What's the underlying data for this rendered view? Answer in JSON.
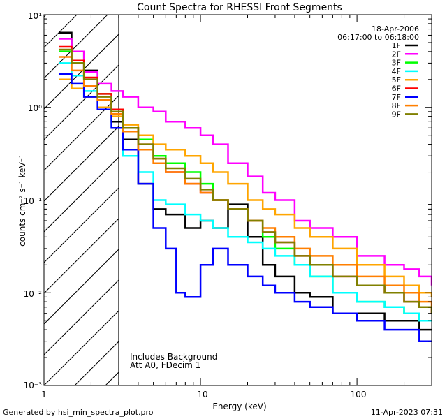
{
  "chart_data": {
    "type": "line",
    "title": "Count Spectra for RHESSI Front Segments",
    "xlabel": "Energy (keV)",
    "ylabel": "counts cm⁻² s⁻¹ keV⁻¹",
    "xscale": "log",
    "yscale": "log",
    "xlim": [
      1,
      300
    ],
    "ylim": [
      0.001,
      10
    ],
    "x_tick_labels": [
      "1",
      "10",
      "100"
    ],
    "y_tick_labels": [
      "10⁻³",
      "10⁻²",
      "10⁻¹",
      "10⁰",
      "10¹"
    ],
    "date": "18-Apr-2006",
    "time_range": "06:17:00 to 06:18:00",
    "annotations": [
      "Includes Background",
      "Att A0, FDecim 1"
    ],
    "shaded_region": {
      "x": [
        1,
        3
      ],
      "pattern": "diagonal hatch"
    },
    "footer_left": "Generated by hsi_min_spectra_plot.pro",
    "footer_right": "11-Apr-2023 07:31",
    "legend_position": "top-right",
    "series": [
      {
        "name": "1F",
        "color": "#000000",
        "values": [
          [
            1.25,
            6.4
          ],
          [
            1.5,
            4.0
          ],
          [
            1.8,
            2.5
          ],
          [
            2.2,
            1.2
          ],
          [
            2.7,
            0.7
          ],
          [
            3.2,
            0.45
          ],
          [
            4,
            0.15
          ],
          [
            5,
            0.08
          ],
          [
            6,
            0.07
          ],
          [
            8,
            0.05
          ],
          [
            10,
            0.06
          ],
          [
            12,
            0.05
          ],
          [
            15,
            0.09
          ],
          [
            20,
            0.04
          ],
          [
            25,
            0.02
          ],
          [
            30,
            0.015
          ],
          [
            40,
            0.01
          ],
          [
            50,
            0.009
          ],
          [
            70,
            0.006
          ],
          [
            100,
            0.006
          ],
          [
            150,
            0.005
          ],
          [
            200,
            0.005
          ],
          [
            250,
            0.004
          ],
          [
            300,
            0.004
          ]
        ]
      },
      {
        "name": "2F",
        "color": "#ff00ff",
        "values": [
          [
            1.25,
            5.5
          ],
          [
            1.5,
            4.0
          ],
          [
            1.8,
            2.4
          ],
          [
            2.2,
            1.8
          ],
          [
            2.7,
            1.5
          ],
          [
            3.2,
            1.3
          ],
          [
            4,
            1.0
          ],
          [
            5,
            0.9
          ],
          [
            6,
            0.7
          ],
          [
            8,
            0.6
          ],
          [
            10,
            0.5
          ],
          [
            12,
            0.4
          ],
          [
            15,
            0.25
          ],
          [
            20,
            0.18
          ],
          [
            25,
            0.12
          ],
          [
            30,
            0.1
          ],
          [
            40,
            0.06
          ],
          [
            50,
            0.05
          ],
          [
            70,
            0.04
          ],
          [
            100,
            0.025
          ],
          [
            150,
            0.02
          ],
          [
            200,
            0.018
          ],
          [
            250,
            0.015
          ],
          [
            300,
            0.012
          ]
        ]
      },
      {
        "name": "3F",
        "color": "#00ff00",
        "values": [
          [
            1.25,
            4.0
          ],
          [
            1.5,
            3.0
          ],
          [
            1.8,
            2.0
          ],
          [
            2.2,
            1.4
          ],
          [
            2.7,
            0.9
          ],
          [
            3.2,
            0.6
          ],
          [
            4,
            0.45
          ],
          [
            5,
            0.3
          ],
          [
            6,
            0.25
          ],
          [
            8,
            0.2
          ],
          [
            10,
            0.15
          ],
          [
            12,
            0.1
          ],
          [
            15,
            0.08
          ],
          [
            20,
            0.06
          ],
          [
            25,
            0.04
          ],
          [
            30,
            0.03
          ],
          [
            40,
            0.02
          ],
          [
            50,
            0.015
          ],
          [
            70,
            0.01
          ],
          [
            100,
            0.008
          ],
          [
            150,
            0.007
          ],
          [
            200,
            0.006
          ],
          [
            250,
            0.005
          ],
          [
            300,
            0.005
          ]
        ]
      },
      {
        "name": "4F",
        "color": "#00ffff",
        "values": [
          [
            1.25,
            3.0
          ],
          [
            1.5,
            2.2
          ],
          [
            1.8,
            1.5
          ],
          [
            2.2,
            1.0
          ],
          [
            2.7,
            0.6
          ],
          [
            3.2,
            0.3
          ],
          [
            4,
            0.2
          ],
          [
            5,
            0.1
          ],
          [
            6,
            0.09
          ],
          [
            8,
            0.07
          ],
          [
            10,
            0.06
          ],
          [
            12,
            0.05
          ],
          [
            15,
            0.04
          ],
          [
            20,
            0.035
          ],
          [
            25,
            0.03
          ],
          [
            30,
            0.025
          ],
          [
            40,
            0.02
          ],
          [
            50,
            0.015
          ],
          [
            70,
            0.01
          ],
          [
            100,
            0.008
          ],
          [
            150,
            0.007
          ],
          [
            200,
            0.006
          ],
          [
            250,
            0.005
          ],
          [
            300,
            0.005
          ]
        ]
      },
      {
        "name": "5F",
        "color": "#ffa500",
        "values": [
          [
            1.25,
            2.0
          ],
          [
            1.5,
            1.6
          ],
          [
            1.8,
            1.3
          ],
          [
            2.2,
            1.0
          ],
          [
            2.7,
            0.8
          ],
          [
            3.2,
            0.65
          ],
          [
            4,
            0.5
          ],
          [
            5,
            0.4
          ],
          [
            6,
            0.35
          ],
          [
            8,
            0.3
          ],
          [
            10,
            0.25
          ],
          [
            12,
            0.2
          ],
          [
            15,
            0.15
          ],
          [
            20,
            0.1
          ],
          [
            25,
            0.08
          ],
          [
            30,
            0.07
          ],
          [
            40,
            0.05
          ],
          [
            50,
            0.04
          ],
          [
            70,
            0.03
          ],
          [
            100,
            0.02
          ],
          [
            150,
            0.015
          ],
          [
            200,
            0.012
          ],
          [
            250,
            0.01
          ],
          [
            300,
            0.009
          ]
        ]
      },
      {
        "name": "6F",
        "color": "#ff0000",
        "values": [
          [
            1.25,
            4.5
          ],
          [
            1.5,
            3.2
          ],
          [
            1.8,
            2.1
          ],
          [
            2.2,
            1.4
          ],
          [
            2.7,
            0.95
          ],
          [
            3.2,
            0.6
          ],
          [
            4,
            0.4
          ],
          [
            5,
            0.28
          ],
          [
            6,
            0.2
          ],
          [
            8,
            0.15
          ],
          [
            10,
            0.12
          ],
          [
            12,
            0.1
          ],
          [
            15,
            0.08
          ],
          [
            20,
            0.06
          ],
          [
            25,
            0.045
          ],
          [
            30,
            0.035
          ],
          [
            40,
            0.025
          ],
          [
            50,
            0.02
          ],
          [
            70,
            0.015
          ],
          [
            100,
            0.012
          ],
          [
            150,
            0.01
          ],
          [
            200,
            0.008
          ],
          [
            250,
            0.007
          ],
          [
            300,
            0.006
          ]
        ]
      },
      {
        "name": "7F",
        "color": "#0000ff",
        "values": [
          [
            1.25,
            2.3
          ],
          [
            1.5,
            1.8
          ],
          [
            1.8,
            1.3
          ],
          [
            2.2,
            0.95
          ],
          [
            2.7,
            0.6
          ],
          [
            3.2,
            0.35
          ],
          [
            4,
            0.15
          ],
          [
            5,
            0.05
          ],
          [
            6,
            0.03
          ],
          [
            7,
            0.01
          ],
          [
            8,
            0.009
          ],
          [
            10,
            0.02
          ],
          [
            12,
            0.03
          ],
          [
            15,
            0.02
          ],
          [
            20,
            0.015
          ],
          [
            25,
            0.012
          ],
          [
            30,
            0.01
          ],
          [
            40,
            0.008
          ],
          [
            50,
            0.007
          ],
          [
            70,
            0.006
          ],
          [
            100,
            0.005
          ],
          [
            150,
            0.004
          ],
          [
            200,
            0.004
          ],
          [
            250,
            0.003
          ],
          [
            300,
            0.003
          ]
        ]
      },
      {
        "name": "8F",
        "color": "#ff7f00",
        "values": [
          [
            1.25,
            3.5
          ],
          [
            1.5,
            2.5
          ],
          [
            1.8,
            1.7
          ],
          [
            2.2,
            1.2
          ],
          [
            2.7,
            0.85
          ],
          [
            3.2,
            0.55
          ],
          [
            4,
            0.35
          ],
          [
            5,
            0.25
          ],
          [
            6,
            0.2
          ],
          [
            8,
            0.15
          ],
          [
            10,
            0.12
          ],
          [
            12,
            0.1
          ],
          [
            15,
            0.08
          ],
          [
            20,
            0.06
          ],
          [
            25,
            0.05
          ],
          [
            30,
            0.04
          ],
          [
            40,
            0.03
          ],
          [
            50,
            0.025
          ],
          [
            70,
            0.02
          ],
          [
            100,
            0.015
          ],
          [
            150,
            0.012
          ],
          [
            200,
            0.01
          ],
          [
            250,
            0.008
          ],
          [
            300,
            0.007
          ]
        ]
      },
      {
        "name": "9F",
        "color": "#808000",
        "values": [
          [
            1.25,
            4.2
          ],
          [
            1.5,
            3.0
          ],
          [
            1.8,
            2.0
          ],
          [
            2.2,
            1.3
          ],
          [
            2.7,
            0.9
          ],
          [
            3.2,
            0.6
          ],
          [
            4,
            0.4
          ],
          [
            5,
            0.28
          ],
          [
            6,
            0.22
          ],
          [
            8,
            0.17
          ],
          [
            10,
            0.13
          ],
          [
            12,
            0.1
          ],
          [
            15,
            0.08
          ],
          [
            20,
            0.06
          ],
          [
            25,
            0.045
          ],
          [
            30,
            0.035
          ],
          [
            40,
            0.025
          ],
          [
            50,
            0.02
          ],
          [
            70,
            0.015
          ],
          [
            100,
            0.012
          ],
          [
            150,
            0.01
          ],
          [
            200,
            0.008
          ],
          [
            250,
            0.007
          ],
          [
            300,
            0.006
          ]
        ]
      }
    ]
  }
}
